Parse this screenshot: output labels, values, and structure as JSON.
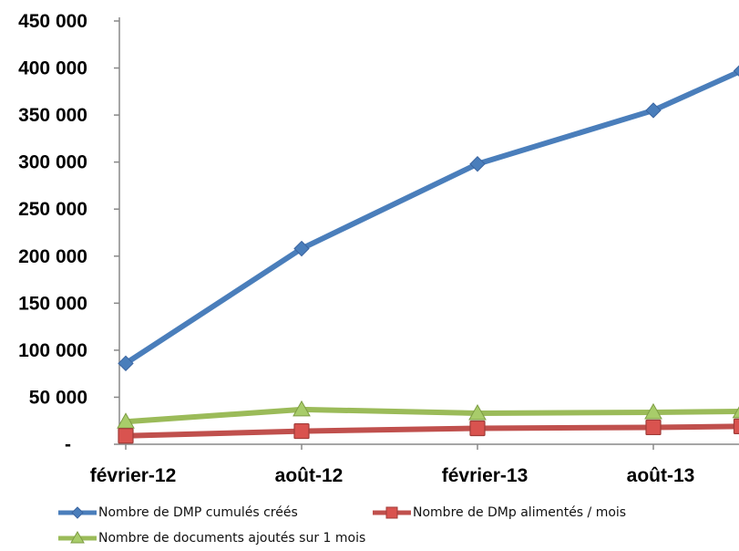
{
  "chart_data": {
    "type": "line",
    "x": [
      "2012-02",
      "2012-05",
      "2012-08",
      "2012-11",
      "2013-02",
      "2013-05",
      "2013-08",
      "2013-10"
    ],
    "x_ticks": [
      "février-12",
      "août-12",
      "février-13",
      "août-13"
    ],
    "xlabel": "",
    "ylabel": "",
    "title": "",
    "ylim": [
      0,
      450000
    ],
    "y_ticks": [
      "-",
      "50 000",
      "100 000",
      "150 000",
      "200 000",
      "250 000",
      "300 000",
      "350 000",
      "400 000",
      "450 000"
    ],
    "grid": false,
    "legend_position": "bottom",
    "series": [
      {
        "name": "Nombre de DMP cumulés créés",
        "color": "#4a7ebb",
        "marker": "diamond",
        "points": [
          [
            "2012-02",
            86000
          ],
          [
            "2012-08",
            208000
          ],
          [
            "2013-02",
            298000
          ],
          [
            "2013-08",
            355000
          ],
          [
            "2013-11",
            397000
          ]
        ]
      },
      {
        "name": "Nombre de DMp alimentés / mois",
        "color": "#c0504d",
        "marker": "square",
        "points": [
          [
            "2012-02",
            9000
          ],
          [
            "2012-08",
            14000
          ],
          [
            "2013-02",
            17000
          ],
          [
            "2013-08",
            18000
          ],
          [
            "2013-11",
            19000
          ]
        ]
      },
      {
        "name": "Nombre de documents ajoutés sur 1 mois",
        "color": "#9bbb59",
        "marker": "triangle",
        "points": [
          [
            "2012-02",
            24000
          ],
          [
            "2012-08",
            37000
          ],
          [
            "2013-02",
            33000
          ],
          [
            "2013-08",
            34000
          ],
          [
            "2013-11",
            35000
          ]
        ]
      }
    ]
  }
}
